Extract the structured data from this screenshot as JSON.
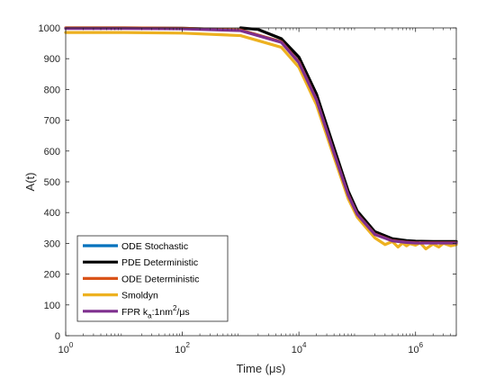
{
  "chart_data": {
    "type": "line",
    "xlabel": "Time (μs)",
    "ylabel": "A(t)",
    "xscale": "log",
    "xlim": [
      1,
      5000000
    ],
    "ylim": [
      0,
      1000
    ],
    "xticks": [
      {
        "value": 1,
        "base": "10",
        "exp": "0"
      },
      {
        "value": 100,
        "base": "10",
        "exp": "2"
      },
      {
        "value": 10000,
        "base": "10",
        "exp": "4"
      },
      {
        "value": 1000000,
        "base": "10",
        "exp": "6"
      }
    ],
    "yticks": [
      0,
      100,
      200,
      300,
      400,
      500,
      600,
      700,
      800,
      900,
      1000
    ],
    "grid": false,
    "legend_position": "bottom-left",
    "series": [
      {
        "name": "ODE Stochastic",
        "color": "#0072BD",
        "x": [
          1,
          10,
          100,
          1000,
          5000,
          10000,
          20000,
          40000,
          70000,
          100000,
          200000,
          400000,
          700000,
          1000000,
          2000000,
          5000000
        ],
        "y": [
          1000,
          1000,
          999,
          993,
          955,
          890,
          768,
          595,
          459,
          396,
          331,
          310,
          305,
          303,
          302,
          302
        ]
      },
      {
        "name": "PDE Deterministic",
        "color": "#000000",
        "x": [
          1000,
          2000,
          5000,
          10000,
          20000,
          40000,
          70000,
          100000,
          200000,
          400000,
          700000,
          1000000,
          2000000,
          5000000
        ],
        "y": [
          1000,
          995,
          965,
          905,
          785,
          610,
          470,
          405,
          338,
          315,
          309,
          307,
          306,
          306
        ]
      },
      {
        "name": "ODE Deterministic",
        "color": "#D95319",
        "x": [
          1,
          10,
          100,
          1000,
          5000,
          10000,
          20000,
          40000,
          70000,
          100000,
          200000,
          400000,
          700000,
          1000000,
          2000000,
          5000000
        ],
        "y": [
          1000,
          1000,
          999,
          993,
          955,
          889,
          767,
          594,
          458,
          395,
          330,
          309,
          304,
          302,
          302,
          302
        ]
      },
      {
        "name": "Smoldyn",
        "color": "#EDB120",
        "x": [
          1,
          10,
          100,
          1000,
          5000,
          10000,
          20000,
          40000,
          70000,
          100000,
          200000,
          300000,
          400000,
          500000,
          600000,
          700000,
          800000,
          1000000,
          1200000,
          1500000,
          2000000,
          2500000,
          3000000,
          4000000,
          5000000
        ],
        "y": [
          985,
          985,
          983,
          975,
          937,
          872,
          750,
          580,
          445,
          385,
          318,
          296,
          306,
          288,
          301,
          292,
          299,
          294,
          302,
          282,
          298,
          288,
          300,
          292,
          296
        ]
      },
      {
        "name": "FPR kₐ:1nm²/μs",
        "label_main": "FPR k",
        "label_sub": "a",
        "label_rest": ":1nm",
        "label_sup": "2",
        "label_end": "/μs",
        "color": "#7E2F8E",
        "x": [
          1,
          10,
          100,
          1000,
          5000,
          10000,
          20000,
          40000,
          70000,
          100000,
          200000,
          400000,
          700000,
          1000000,
          2000000,
          5000000
        ],
        "y": [
          998,
          998,
          997,
          991,
          953,
          887,
          766,
          593,
          457,
          394,
          329,
          308,
          303,
          301,
          301,
          301
        ]
      }
    ]
  }
}
